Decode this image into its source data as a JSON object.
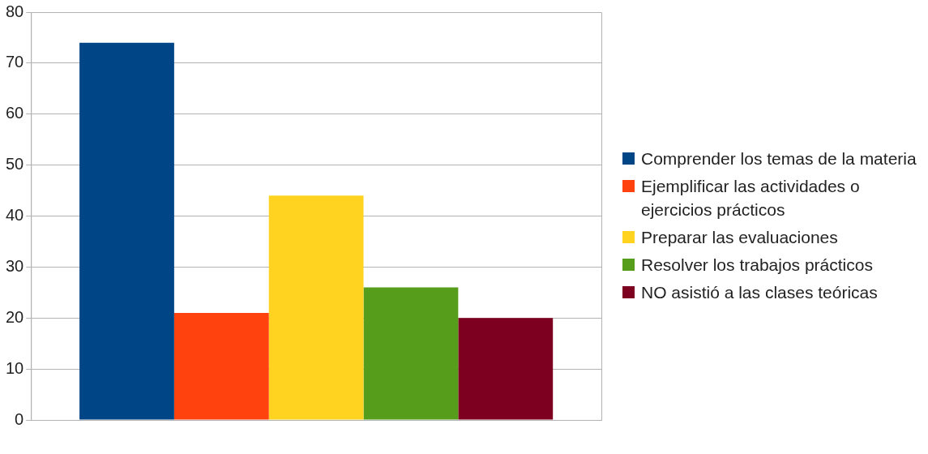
{
  "chart_data": {
    "type": "bar",
    "categories": [
      null
    ],
    "series": [
      {
        "name": "Comprender los temas de la materia",
        "color": "#004586",
        "values": [
          74
        ]
      },
      {
        "name": "Ejemplificar las actividades o ejercicios prácticos",
        "color": "#ff420e",
        "values": [
          21
        ]
      },
      {
        "name": "Preparar las evaluaciones",
        "color": "#ffd320",
        "values": [
          44
        ]
      },
      {
        "name": "Resolver los trabajos prácticos",
        "color": "#579d1c",
        "values": [
          26
        ]
      },
      {
        "name": "NO asistió a las clases teóricas",
        "color": "#7e0021",
        "values": [
          20
        ]
      }
    ],
    "ylim": [
      0,
      80
    ],
    "yticks": [
      0,
      10,
      20,
      30,
      40,
      50,
      60,
      70,
      80
    ],
    "grid": "y",
    "legend": "right"
  }
}
